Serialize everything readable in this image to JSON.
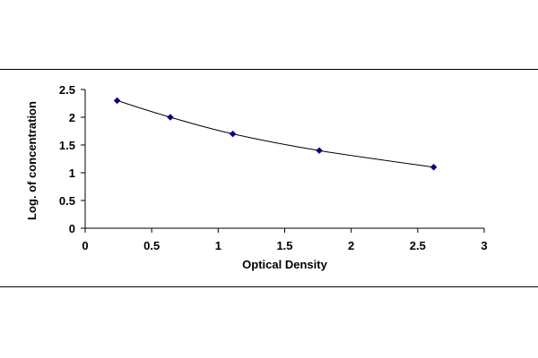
{
  "chart_data": {
    "type": "scatter",
    "title": "",
    "xlabel": "Optical Density",
    "ylabel": "Log. of concentration",
    "xlim": [
      0,
      3
    ],
    "ylim": [
      0,
      2.5
    ],
    "x_ticks": [
      "0",
      "0.5",
      "1",
      "1.5",
      "2",
      "2.5",
      "3"
    ],
    "y_ticks": [
      "0",
      "0.5",
      "1",
      "1.5",
      "2",
      "2.5"
    ],
    "grid": false,
    "legend": "none",
    "trendline": "smooth curve",
    "series": [
      {
        "x": [
          0.24,
          0.64,
          1.11,
          1.76,
          2.62
        ],
        "y": [
          2.3,
          2.0,
          1.7,
          1.4,
          1.1
        ]
      }
    ],
    "colors": {
      "marker": "#00007f",
      "curve": "#000000",
      "axis": "#000000"
    }
  }
}
